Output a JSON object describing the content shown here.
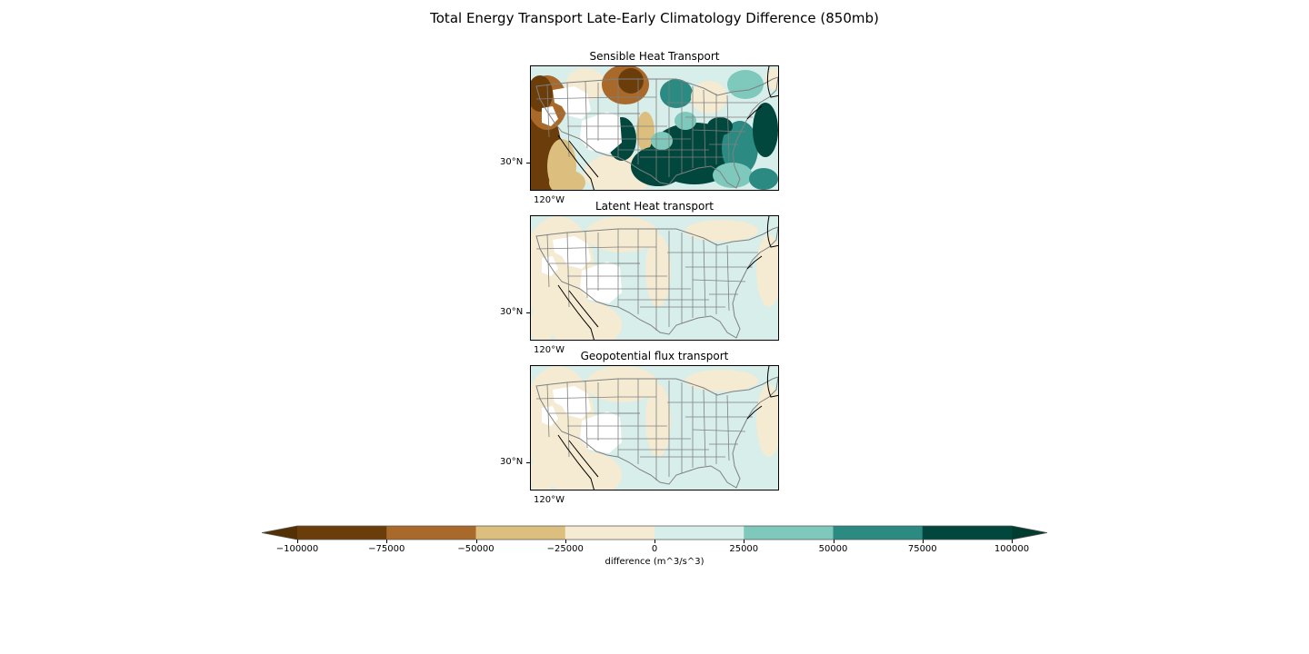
{
  "figure": {
    "title": "Total Energy Transport Late-Early Climatology Difference (850mb)"
  },
  "panels": [
    {
      "title": "Sensible Heat Transport",
      "lat_label": "30°N",
      "lon_label": "120°W",
      "pattern": "strong"
    },
    {
      "title": "Latent Heat transport",
      "lat_label": "30°N",
      "lon_label": "120°W",
      "pattern": "weak"
    },
    {
      "title": "Geopotential flux transport",
      "lat_label": "30°N",
      "lon_label": "120°W",
      "pattern": "weak"
    }
  ],
  "colorbar": {
    "label": "difference (m^3/s^3)",
    "ticks": [
      "−100000",
      "−75000",
      "−50000",
      "−25000",
      "0",
      "25000",
      "50000",
      "75000",
      "100000"
    ],
    "levels": [
      -100000,
      -75000,
      -50000,
      -25000,
      0,
      25000,
      50000,
      75000,
      100000
    ],
    "colors": [
      "#6b3d0a",
      "#a8692a",
      "#dcbf7e",
      "#f5ead2",
      "#d7eeea",
      "#7fc8bc",
      "#2b8b82",
      "#01473d"
    ],
    "extend_low_color": "#543005",
    "extend_high_color": "#003c30",
    "orientation": "horizontal",
    "extend": "both"
  },
  "map": {
    "region": "Contiguous United States",
    "projection": "PlateCarree",
    "state_border_color": "#808080",
    "coastline_color": "#000000",
    "missing_color": "#ffffff"
  }
}
